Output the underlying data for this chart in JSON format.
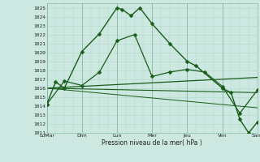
{
  "xlabel": "Pression niveau de la mer( hPa )",
  "ylim": [
    1011,
    1025.5
  ],
  "yticks": [
    1011,
    1012,
    1013,
    1014,
    1015,
    1016,
    1017,
    1018,
    1019,
    1020,
    1021,
    1022,
    1023,
    1024,
    1025
  ],
  "day_labels": [
    "LuMar",
    "Dim",
    "Lun",
    "Mer",
    "Jeu",
    "Ven",
    "Sam"
  ],
  "day_positions": [
    0,
    2,
    4,
    6,
    8,
    10,
    12
  ],
  "bg_color": "#cce8e0",
  "grid_color": "#b0d8cc",
  "line_color": "#1a5c1a",
  "series": [
    {
      "x": [
        0,
        0.5,
        1,
        2,
        3,
        4,
        4.3,
        4.8,
        5.3,
        6,
        7,
        8,
        8.5,
        10,
        10.5,
        11,
        11.5,
        12
      ],
      "y": [
        1014.2,
        1016.7,
        1016.0,
        1020.1,
        1022.1,
        1025.0,
        1024.8,
        1024.1,
        1025.0,
        1023.2,
        1021.0,
        1019.0,
        1018.5,
        1016.0,
        1015.5,
        1012.5,
        1011.0,
        1012.2
      ],
      "marker": "D",
      "markersize": 2.5,
      "linewidth": 1.0
    },
    {
      "x": [
        0,
        1,
        2,
        3,
        4,
        5,
        6,
        7,
        8,
        9,
        10,
        11,
        12
      ],
      "y": [
        1014.2,
        1016.8,
        1016.3,
        1017.8,
        1021.3,
        1022.0,
        1017.3,
        1017.8,
        1018.1,
        1017.8,
        1016.2,
        1013.2,
        1015.8
      ],
      "marker": "D",
      "markersize": 2.5,
      "linewidth": 0.9
    },
    {
      "x": [
        0,
        12
      ],
      "y": [
        1016.0,
        1017.2
      ],
      "marker": null,
      "linewidth": 0.9
    },
    {
      "x": [
        0,
        12
      ],
      "y": [
        1016.0,
        1015.5
      ],
      "marker": null,
      "linewidth": 0.8
    },
    {
      "x": [
        0,
        12
      ],
      "y": [
        1016.0,
        1013.8
      ],
      "marker": null,
      "linewidth": 0.7
    }
  ]
}
